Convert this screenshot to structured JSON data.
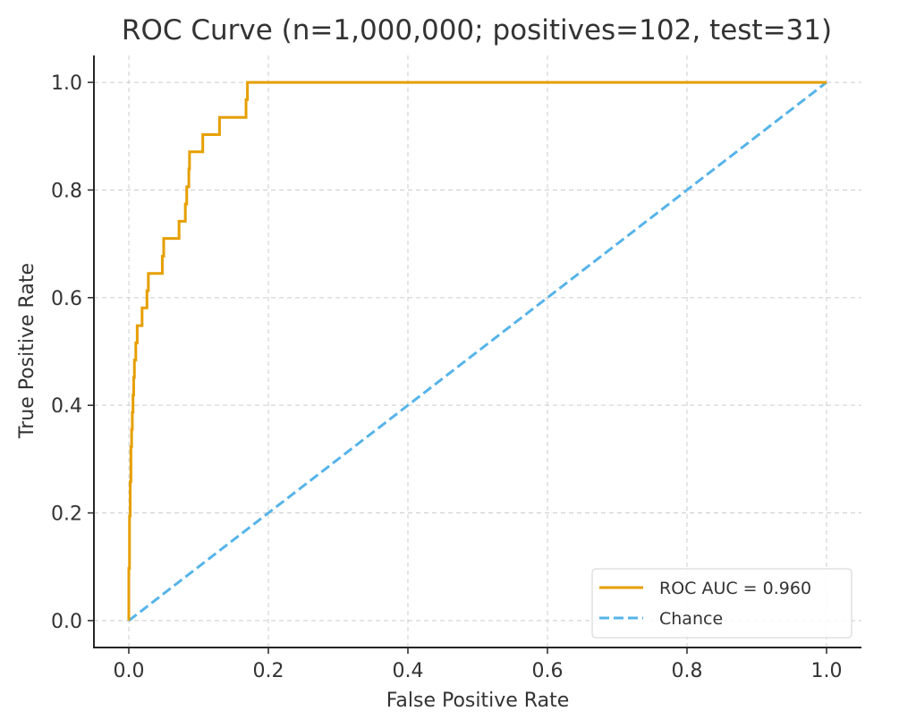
{
  "chart_data": {
    "type": "line",
    "title": "ROC Curve (n=1,000,000; positives=102, test=31)",
    "xlabel": "False Positive Rate",
    "ylabel": "True Positive Rate",
    "xlim": [
      -0.05,
      1.05
    ],
    "ylim": [
      -0.05,
      1.05
    ],
    "xticks": [
      "0.0",
      "0.2",
      "0.4",
      "0.6",
      "0.8",
      "1.0"
    ],
    "yticks": [
      "0.0",
      "0.2",
      "0.4",
      "0.6",
      "0.8",
      "1.0"
    ],
    "xtick_values": [
      0,
      0.2,
      0.4,
      0.6,
      0.8,
      1.0
    ],
    "ytick_values": [
      0,
      0.2,
      0.4,
      0.6,
      0.8,
      1.0
    ],
    "grid": true,
    "legend_position": "lower-right",
    "series": [
      {
        "name": "ROC AUC = 0.960",
        "color": "#E69F00",
        "style": "solid",
        "step": true,
        "x": [
          0.0,
          0.0,
          0.001,
          0.001,
          0.002,
          0.002,
          0.003,
          0.003,
          0.004,
          0.004,
          0.005,
          0.005,
          0.006,
          0.006,
          0.007,
          0.007,
          0.008,
          0.008,
          0.01,
          0.01,
          0.012,
          0.012,
          0.019,
          0.019,
          0.026,
          0.026,
          0.028,
          0.028,
          0.048,
          0.048,
          0.05,
          0.05,
          0.072,
          0.072,
          0.081,
          0.081,
          0.083,
          0.083,
          0.086,
          0.086,
          0.087,
          0.087,
          0.106,
          0.106,
          0.13,
          0.13,
          0.168,
          0.168,
          0.17,
          0.17,
          1.0
        ],
        "y": [
          0.0,
          0.097,
          0.097,
          0.194,
          0.194,
          0.258,
          0.258,
          0.323,
          0.323,
          0.355,
          0.355,
          0.387,
          0.387,
          0.419,
          0.419,
          0.452,
          0.452,
          0.484,
          0.484,
          0.516,
          0.516,
          0.548,
          0.548,
          0.581,
          0.581,
          0.613,
          0.613,
          0.645,
          0.645,
          0.677,
          0.677,
          0.71,
          0.71,
          0.742,
          0.742,
          0.774,
          0.774,
          0.806,
          0.806,
          0.839,
          0.839,
          0.871,
          0.871,
          0.903,
          0.903,
          0.935,
          0.935,
          0.968,
          0.968,
          1.0,
          1.0
        ]
      },
      {
        "name": "Chance",
        "color": "#56B4E9",
        "style": "dashed",
        "x": [
          0,
          1
        ],
        "y": [
          0,
          1
        ]
      }
    ]
  },
  "colors": {
    "grid": "#cccccc",
    "axis": "#262626",
    "text": "#333333"
  }
}
